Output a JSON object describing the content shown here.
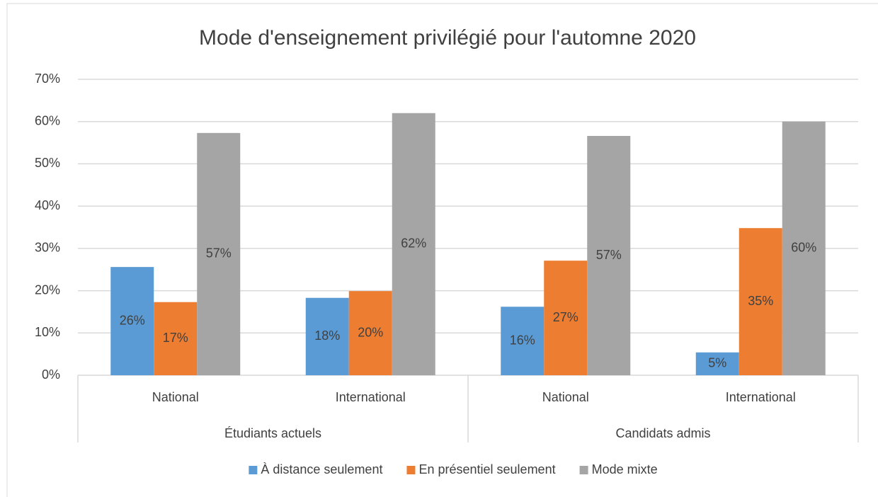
{
  "chart_data": {
    "type": "bar",
    "title": "Mode d'enseignement privilégié pour l'automne 2020",
    "groups": [
      {
        "name": "Étudiants actuels",
        "categories": [
          "National",
          "International"
        ]
      },
      {
        "name": "Candidats admis",
        "categories": [
          "National",
          "International"
        ]
      }
    ],
    "series": [
      {
        "name": "À distance seulement",
        "color": "#5b9bd5",
        "values": [
          25.6,
          18.3,
          16.2,
          5.4
        ],
        "value_labels": [
          "26%",
          "18%",
          "16%",
          "5%"
        ]
      },
      {
        "name": "En présentiel seulement",
        "color": "#ed7d31",
        "values": [
          17.3,
          19.9,
          27.1,
          34.8
        ],
        "value_labels": [
          "17%",
          "20%",
          "27%",
          "35%"
        ]
      },
      {
        "name": "Mode mixte",
        "color": "#a5a5a5",
        "values": [
          57.3,
          62.0,
          56.6,
          60.0
        ],
        "value_labels": [
          "57%",
          "62%",
          "57%",
          "60%"
        ]
      }
    ],
    "ylim": [
      0,
      70
    ],
    "yticks": [
      {
        "value": 0,
        "label": "0%"
      },
      {
        "value": 10,
        "label": "10%"
      },
      {
        "value": 20,
        "label": "20%"
      },
      {
        "value": 30,
        "label": "30%"
      },
      {
        "value": 40,
        "label": "40%"
      },
      {
        "value": 50,
        "label": "50%"
      },
      {
        "value": 60,
        "label": "60%"
      },
      {
        "value": 70,
        "label": "70%"
      }
    ],
    "grid": true,
    "legend": "bottom"
  }
}
